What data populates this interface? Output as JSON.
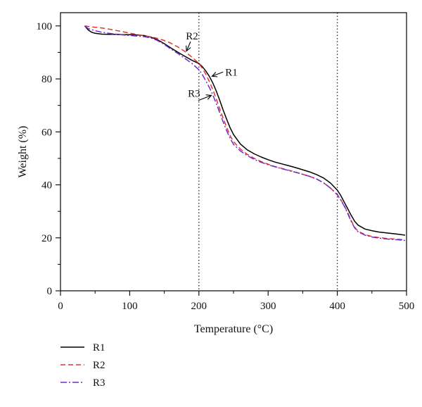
{
  "chart_data": {
    "type": "line",
    "xlabel": "Temperature (°C)",
    "ylabel": "Weight (%)",
    "xlim": [
      0,
      500
    ],
    "ylim": [
      0,
      105
    ],
    "x_ticks": [
      0,
      100,
      200,
      300,
      400,
      500
    ],
    "y_ticks": [
      0,
      20,
      40,
      60,
      80,
      100
    ],
    "grid": false,
    "legend_position": "bottom-left",
    "reference_lines_x": [
      200,
      400
    ],
    "series": [
      {
        "name": "R1",
        "color": "#000000",
        "style": "solid",
        "x": [
          35,
          40,
          45,
          50,
          60,
          70,
          80,
          90,
          100,
          110,
          120,
          130,
          140,
          150,
          160,
          170,
          180,
          190,
          200,
          205,
          210,
          215,
          220,
          225,
          230,
          235,
          240,
          245,
          250,
          260,
          270,
          280,
          290,
          300,
          310,
          320,
          330,
          340,
          350,
          360,
          370,
          380,
          390,
          400,
          405,
          410,
          415,
          420,
          425,
          430,
          440,
          450,
          460,
          470,
          480,
          490,
          498
        ],
        "values": [
          100,
          98.5,
          97.6,
          97.2,
          96.9,
          96.8,
          96.8,
          96.7,
          96.7,
          96.6,
          96.4,
          95.8,
          94.8,
          93.3,
          91.6,
          90.0,
          88.5,
          87.0,
          85.8,
          84.6,
          83.0,
          81.0,
          78.5,
          75.5,
          72.0,
          68.3,
          64.8,
          61.6,
          59.0,
          55.4,
          53.2,
          51.7,
          50.5,
          49.5,
          48.6,
          47.9,
          47.2,
          46.5,
          45.7,
          44.9,
          43.9,
          42.6,
          40.7,
          38.0,
          36.0,
          33.5,
          31.0,
          28.5,
          26.3,
          24.8,
          23.3,
          22.7,
          22.2,
          21.9,
          21.6,
          21.3,
          21.0
        ]
      },
      {
        "name": "R2",
        "color": "#e8312a",
        "style": "dashed",
        "x": [
          35,
          40,
          50,
          60,
          70,
          80,
          90,
          100,
          110,
          120,
          130,
          140,
          150,
          160,
          170,
          180,
          190,
          200,
          205,
          210,
          215,
          220,
          225,
          230,
          235,
          240,
          245,
          250,
          260,
          270,
          280,
          290,
          300,
          310,
          320,
          330,
          340,
          350,
          360,
          370,
          380,
          390,
          400,
          405,
          410,
          415,
          420,
          425,
          430,
          440,
          450,
          460,
          470,
          480,
          490,
          498
        ],
        "values": [
          100,
          99.8,
          99.5,
          99.2,
          98.8,
          98.3,
          97.8,
          97.3,
          96.8,
          96.3,
          95.9,
          95.3,
          94.5,
          93.4,
          92.0,
          90.3,
          88.2,
          85.8,
          84.0,
          81.8,
          79.0,
          76.0,
          72.5,
          68.8,
          65.2,
          61.8,
          58.6,
          56.3,
          53.5,
          51.5,
          50.0,
          48.8,
          47.8,
          46.9,
          46.2,
          45.5,
          44.8,
          44.0,
          43.2,
          42.2,
          40.8,
          38.8,
          36.3,
          34.4,
          32.2,
          29.5,
          26.5,
          24.0,
          22.5,
          21.2,
          20.5,
          20.1,
          19.8,
          19.6,
          19.4,
          19.2
        ]
      },
      {
        "name": "R3",
        "color": "#6b2bd6",
        "style": "dash-dot",
        "x": [
          35,
          40,
          50,
          60,
          70,
          80,
          90,
          100,
          110,
          120,
          130,
          140,
          150,
          160,
          170,
          180,
          190,
          200,
          205,
          210,
          215,
          220,
          225,
          230,
          235,
          240,
          245,
          250,
          260,
          270,
          280,
          290,
          300,
          310,
          320,
          330,
          340,
          350,
          360,
          370,
          380,
          390,
          400,
          405,
          410,
          415,
          420,
          425,
          430,
          440,
          450,
          460,
          470,
          480,
          490,
          498
        ],
        "values": [
          100,
          99.0,
          98.2,
          97.6,
          97.2,
          96.9,
          96.6,
          96.4,
          96.2,
          96.0,
          95.5,
          94.5,
          93.0,
          91.2,
          89.5,
          87.7,
          85.8,
          83.5,
          81.6,
          79.3,
          76.8,
          74.0,
          70.8,
          67.3,
          63.8,
          60.5,
          57.6,
          55.3,
          52.8,
          51.0,
          49.6,
          48.5,
          47.6,
          46.8,
          46.1,
          45.4,
          44.7,
          44.0,
          43.2,
          42.2,
          40.8,
          38.8,
          36.2,
          34.3,
          32.0,
          29.2,
          26.2,
          23.8,
          22.3,
          21.0,
          20.3,
          19.9,
          19.6,
          19.4,
          19.2,
          19.0
        ]
      }
    ],
    "annotations": [
      {
        "text": "R2",
        "series": "R2",
        "point_x": 182,
        "point_y": 90.5,
        "label_x": 190,
        "label_y": 96.2
      },
      {
        "text": "R1",
        "series": "R1",
        "point_x": 219,
        "point_y": 81,
        "label_x": 238,
        "label_y": 82.6
      },
      {
        "text": "R3",
        "series": "R3",
        "point_x": 218,
        "point_y": 73.8,
        "label_x": 193,
        "label_y": 74.5
      }
    ]
  }
}
